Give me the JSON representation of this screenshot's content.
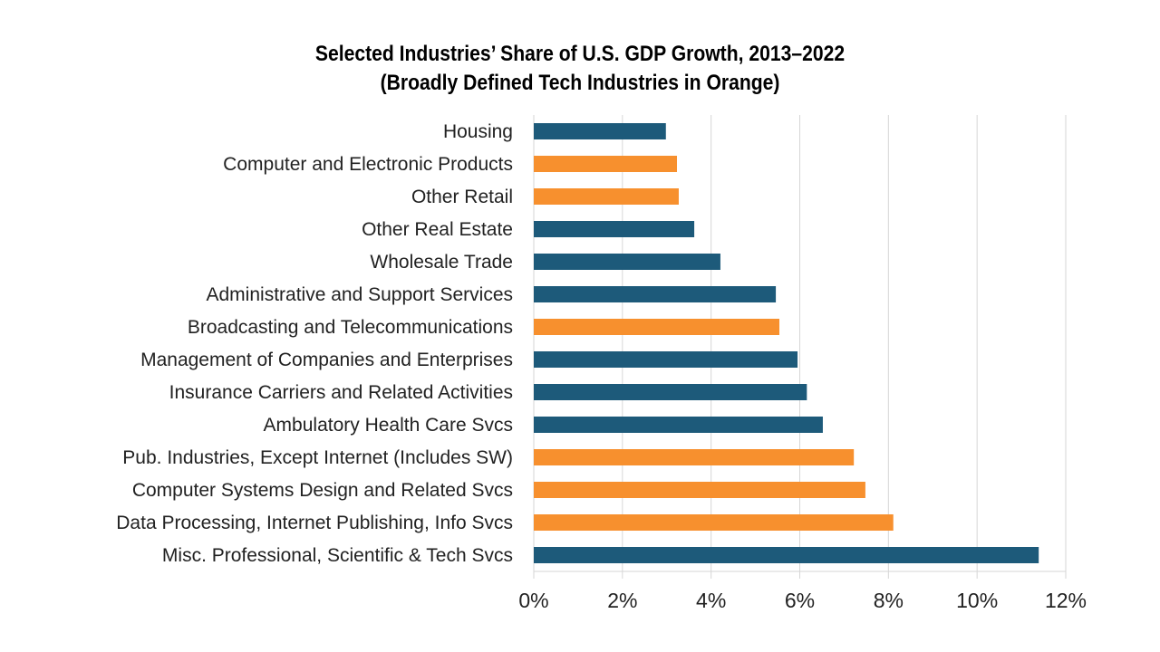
{
  "chart_data": {
    "type": "bar",
    "orientation": "horizontal",
    "title": "Selected Industries’ Share of U.S. GDP Growth, 2013–2022",
    "subtitle": "(Broadly Defined Tech Industries in Orange)",
    "xlabel": "",
    "ylabel": "",
    "xlim": [
      0,
      12
    ],
    "x_ticks": [
      "0%",
      "2%",
      "4%",
      "6%",
      "8%",
      "10%",
      "12%"
    ],
    "grid": "vertical",
    "colors": {
      "other": "#1d5a7a",
      "tech": "#f7902e"
    },
    "categories": [
      "Housing",
      "Computer and Electronic Products",
      "Other Retail",
      "Other Real Estate",
      "Wholesale Trade",
      "Administrative and Support Services",
      "Broadcasting and Telecommunications",
      "Management of Companies and Enterprises",
      "Insurance Carriers and Related Activities",
      "Ambulatory Health Care Svcs",
      "Pub. Industries, Except Internet (Includes SW)",
      "Computer Systems Design and Related Svcs",
      "Data Processing, Internet Publishing, Info Svcs",
      "Misc. Professional, Scientific & Tech Svcs"
    ],
    "values": [
      2.98,
      3.23,
      3.27,
      3.62,
      4.21,
      5.46,
      5.54,
      5.95,
      6.16,
      6.52,
      7.22,
      7.48,
      8.11,
      11.39
    ],
    "tech": [
      false,
      true,
      true,
      false,
      false,
      false,
      true,
      false,
      false,
      false,
      true,
      true,
      true,
      false
    ]
  }
}
